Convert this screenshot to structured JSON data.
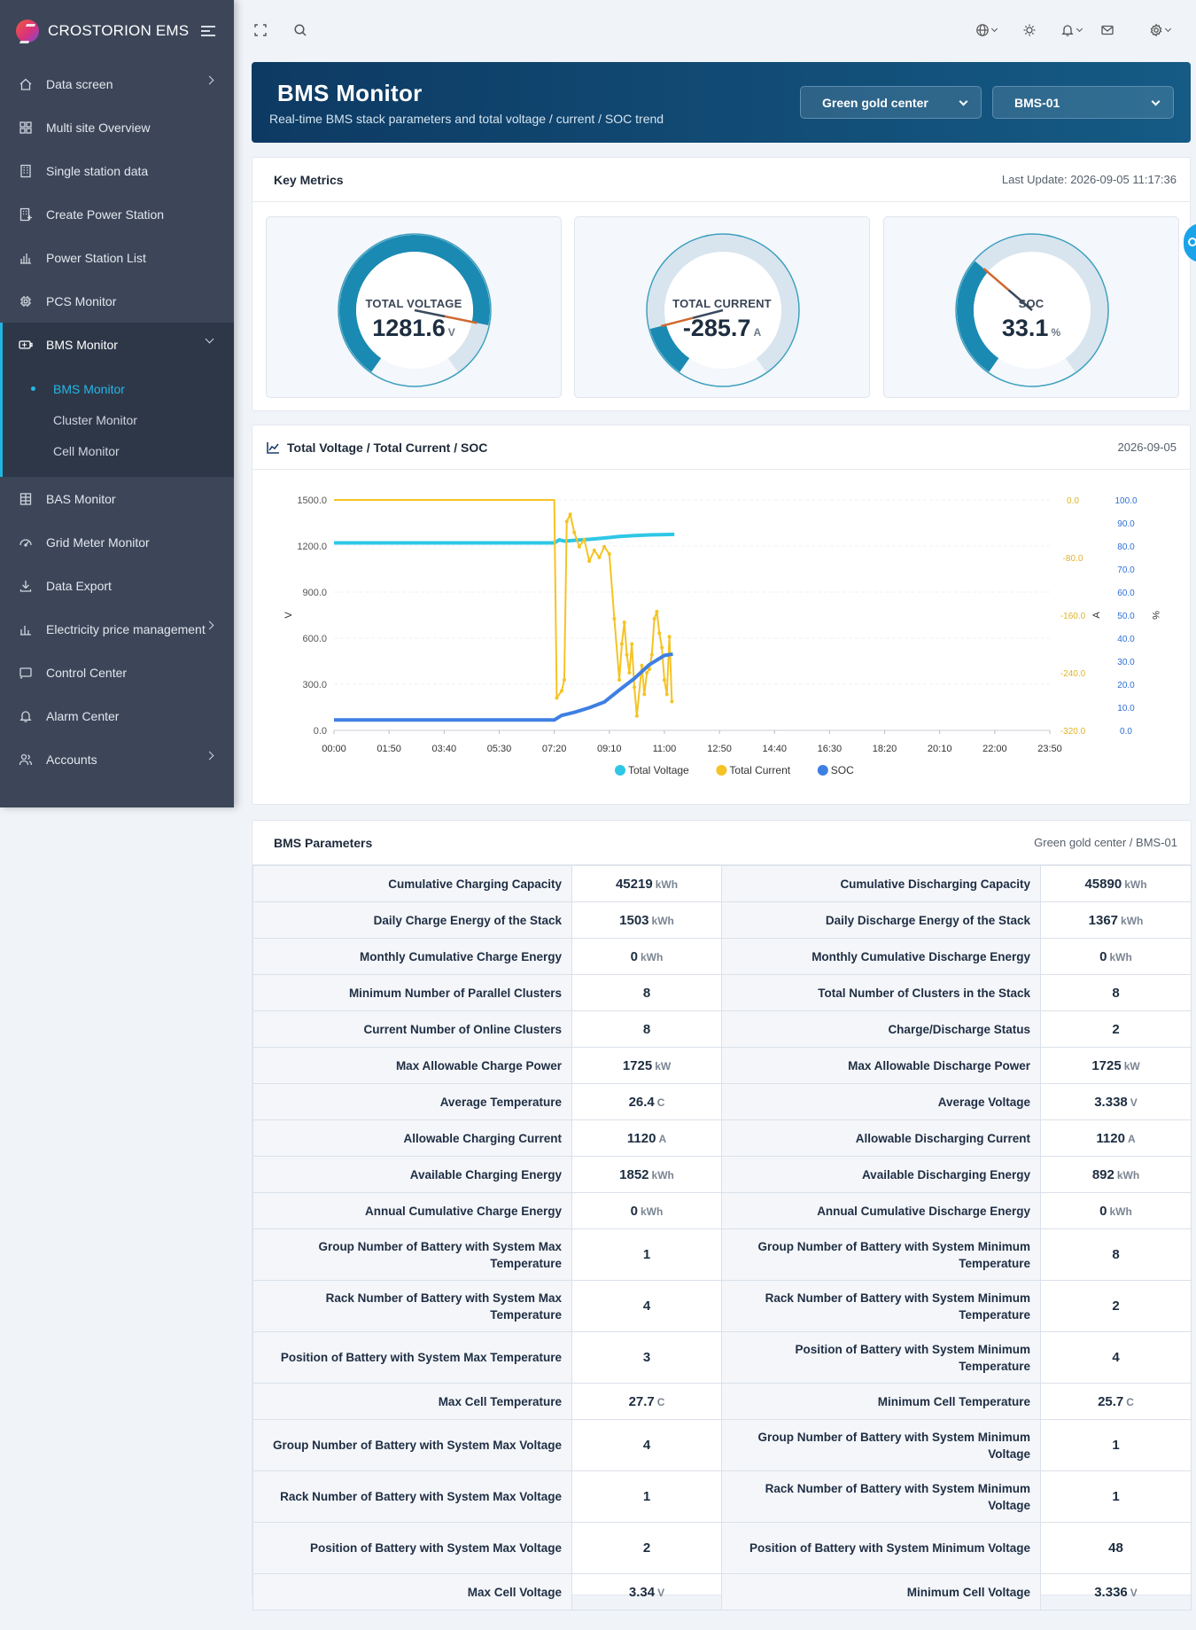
{
  "app": {
    "name": "CROSTORION EMS"
  },
  "sidebar": {
    "items_before": [
      {
        "label": "Data screen",
        "icon": "home-icon",
        "chevron": true
      },
      {
        "label": "Multi site Overview",
        "icon": "grid-icon",
        "chevron": false
      },
      {
        "label": "Single station data",
        "icon": "building-icon",
        "chevron": false
      },
      {
        "label": "Create Power Station",
        "icon": "building-plus-icon",
        "chevron": false
      },
      {
        "label": "Power Station List",
        "icon": "bar-list-icon",
        "chevron": false
      },
      {
        "label": "PCS Monitor",
        "icon": "chip-icon",
        "chevron": false
      }
    ],
    "active": {
      "label": "BMS Monitor",
      "icon": "battery-icon"
    },
    "submenu": [
      {
        "label": "BMS Monitor",
        "active": true
      },
      {
        "label": "Cluster Monitor",
        "active": false
      },
      {
        "label": "Cell Monitor",
        "active": false
      }
    ],
    "items_after": [
      {
        "label": "BAS Monitor",
        "icon": "building-grid-icon",
        "chevron": false
      },
      {
        "label": "Grid Meter Monitor",
        "icon": "gauge-icon",
        "chevron": false
      },
      {
        "label": "Data Export",
        "icon": "download-icon",
        "chevron": false
      },
      {
        "label": "Electricity price management",
        "icon": "bar-chart-icon",
        "chevron": true
      },
      {
        "label": "Control Center",
        "icon": "cast-icon",
        "chevron": false
      },
      {
        "label": "Alarm Center",
        "icon": "bell-icon",
        "chevron": false
      },
      {
        "label": "Accounts",
        "icon": "users-icon",
        "chevron": true
      }
    ]
  },
  "topbar": {
    "icons": [
      "fullscreen-icon",
      "search-icon",
      "globe-icon",
      "sun-icon",
      "bell-icon",
      "mail-icon",
      "settings-icon"
    ]
  },
  "banner": {
    "title": "BMS Monitor",
    "subtitle": "Real-time BMS stack parameters and total voltage / current / SOC trend",
    "station_select": "Green gold center",
    "bms_select": "BMS-01"
  },
  "key_metrics": {
    "title": "Key Metrics",
    "last_update": "Last Update: 2026-09-05 11:17:36",
    "gauges": [
      {
        "label": "TOTAL VOLTAGE",
        "value": "1281.6",
        "unit": "V",
        "fraction": 0.85
      },
      {
        "label": "TOTAL CURRENT",
        "value": "-285.7",
        "unit": "A",
        "fraction": 0.14
      },
      {
        "label": "SOC",
        "value": "33.1",
        "unit": "%",
        "fraction": 0.33
      }
    ]
  },
  "trend": {
    "title": "Total Voltage / Total Current / SOC",
    "date": "2026-09-05"
  },
  "chart_data": {
    "type": "line",
    "title": "Total Voltage / Total Current / SOC",
    "x_labels": [
      "00:00",
      "01:50",
      "03:40",
      "05:30",
      "07:20",
      "09:10",
      "11:00",
      "12:50",
      "14:40",
      "16:30",
      "18:20",
      "20:10",
      "22:00",
      "23:50"
    ],
    "axes": {
      "left": {
        "label": "V",
        "ticks": [
          "0.0",
          "300.0",
          "600.0",
          "900.0",
          "1200.0",
          "1500.0"
        ],
        "range": [
          0,
          1500
        ]
      },
      "right1": {
        "label": "A",
        "ticks": [
          "-320.0",
          "-240.0",
          "-160.0",
          "-80.0",
          "0.0"
        ],
        "range": [
          -320,
          0
        ]
      },
      "right2": {
        "label": "%",
        "ticks": [
          "0.0",
          "10.0",
          "20.0",
          "30.0",
          "40.0",
          "50.0",
          "60.0",
          "70.0",
          "80.0",
          "90.0",
          "100.0"
        ],
        "range": [
          0,
          100
        ]
      }
    },
    "grid": true,
    "legend": "bottom",
    "series": [
      {
        "name": "Total Voltage",
        "axis": "left",
        "color": "#2ec7e6",
        "points": [
          [
            "00:00",
            1220
          ],
          [
            "07:20",
            1220
          ],
          [
            "07:30",
            1240
          ],
          [
            "07:40",
            1232
          ],
          [
            "08:00",
            1237
          ],
          [
            "08:30",
            1243
          ],
          [
            "09:00",
            1252
          ],
          [
            "09:30",
            1262
          ],
          [
            "10:00",
            1268
          ],
          [
            "10:30",
            1272
          ],
          [
            "11:20",
            1276
          ]
        ]
      },
      {
        "name": "Total Current",
        "axis": "right1",
        "color": "#f5c324",
        "points": [
          [
            "00:00",
            0
          ],
          [
            "07:20",
            0
          ],
          [
            "07:25",
            -275
          ],
          [
            "07:35",
            -265
          ],
          [
            "07:40",
            -250
          ],
          [
            "07:45",
            -30
          ],
          [
            "07:52",
            -20
          ],
          [
            "08:00",
            -45
          ],
          [
            "08:10",
            -65
          ],
          [
            "08:20",
            -55
          ],
          [
            "08:30",
            -85
          ],
          [
            "08:40",
            -70
          ],
          [
            "08:50",
            -80
          ],
          [
            "09:00",
            -65
          ],
          [
            "09:10",
            -75
          ],
          [
            "09:20",
            -165
          ],
          [
            "09:30",
            -250
          ],
          [
            "09:35",
            -200
          ],
          [
            "09:40",
            -170
          ],
          [
            "09:45",
            -215
          ],
          [
            "09:50",
            -240
          ],
          [
            "09:55",
            -200
          ],
          [
            "10:00",
            -260
          ],
          [
            "10:05",
            -300
          ],
          [
            "10:15",
            -230
          ],
          [
            "10:20",
            -270
          ],
          [
            "10:25",
            -240
          ],
          [
            "10:30",
            -235
          ],
          [
            "10:35",
            -215
          ],
          [
            "10:40",
            -165
          ],
          [
            "10:45",
            -155
          ],
          [
            "10:50",
            -185
          ],
          [
            "10:55",
            -205
          ],
          [
            "11:00",
            -250
          ],
          [
            "11:05",
            -270
          ],
          [
            "11:10",
            -190
          ],
          [
            "11:15",
            -280
          ]
        ]
      },
      {
        "name": "SOC",
        "axis": "right2",
        "color": "#3e7fe3",
        "points": [
          [
            "00:00",
            4.5
          ],
          [
            "07:20",
            4.5
          ],
          [
            "07:35",
            6.5
          ],
          [
            "08:00",
            7.8
          ],
          [
            "08:30",
            9.8
          ],
          [
            "09:00",
            12.3
          ],
          [
            "09:30",
            17.5
          ],
          [
            "10:00",
            22.5
          ],
          [
            "10:30",
            28.5
          ],
          [
            "11:00",
            32.5
          ],
          [
            "11:17",
            33.1
          ]
        ]
      }
    ]
  },
  "params": {
    "title": "BMS Parameters",
    "subtitle": "Green gold center / BMS-01",
    "rows": [
      [
        {
          "label": "Cumulative Charging Capacity",
          "value": "45219",
          "unit": "kWh"
        },
        {
          "label": "Cumulative Discharging Capacity",
          "value": "45890",
          "unit": "kWh"
        }
      ],
      [
        {
          "label": "Daily Charge Energy of the Stack",
          "value": "1503",
          "unit": "kWh"
        },
        {
          "label": "Daily Discharge Energy of the Stack",
          "value": "1367",
          "unit": "kWh"
        }
      ],
      [
        {
          "label": "Monthly Cumulative Charge Energy",
          "value": "0",
          "unit": "kWh"
        },
        {
          "label": "Monthly Cumulative Discharge Energy",
          "value": "0",
          "unit": "kWh"
        }
      ],
      [
        {
          "label": "Minimum Number of Parallel Clusters",
          "value": "8",
          "unit": ""
        },
        {
          "label": "Total Number of Clusters in the Stack",
          "value": "8",
          "unit": ""
        }
      ],
      [
        {
          "label": "Current Number of Online Clusters",
          "value": "8",
          "unit": ""
        },
        {
          "label": "Charge/Discharge Status",
          "value": "2",
          "unit": ""
        }
      ],
      [
        {
          "label": "Max Allowable Charge Power",
          "value": "1725",
          "unit": "kW"
        },
        {
          "label": "Max Allowable Discharge Power",
          "value": "1725",
          "unit": "kW"
        }
      ],
      [
        {
          "label": "Average Temperature",
          "value": "26.4",
          "unit": "C"
        },
        {
          "label": "Average Voltage",
          "value": "3.338",
          "unit": "V"
        }
      ],
      [
        {
          "label": "Allowable Charging Current",
          "value": "1120",
          "unit": "A"
        },
        {
          "label": "Allowable Discharging Current",
          "value": "1120",
          "unit": "A"
        }
      ],
      [
        {
          "label": "Available Charging Energy",
          "value": "1852",
          "unit": "kWh"
        },
        {
          "label": "Available Discharging Energy",
          "value": "892",
          "unit": "kWh"
        }
      ],
      [
        {
          "label": "Annual Cumulative Charge Energy",
          "value": "0",
          "unit": "kWh"
        },
        {
          "label": "Annual Cumulative Discharge Energy",
          "value": "0",
          "unit": "kWh"
        }
      ],
      [
        {
          "label": "Group Number of Battery with System Max Temperature",
          "value": "1",
          "unit": ""
        },
        {
          "label": "Group Number of Battery with System Minimum Temperature",
          "value": "8",
          "unit": ""
        }
      ],
      [
        {
          "label": "Rack Number of Battery with System Max Temperature",
          "value": "4",
          "unit": ""
        },
        {
          "label": "Rack Number of Battery with System Minimum Temperature",
          "value": "2",
          "unit": ""
        }
      ],
      [
        {
          "label": "Position of Battery with System Max Temperature",
          "value": "3",
          "unit": ""
        },
        {
          "label": "Position of Battery with System Minimum Temperature",
          "value": "4",
          "unit": ""
        }
      ],
      [
        {
          "label": "Max Cell Temperature",
          "value": "27.7",
          "unit": "C"
        },
        {
          "label": "Minimum Cell Temperature",
          "value": "25.7",
          "unit": "C"
        }
      ],
      [
        {
          "label": "Group Number of Battery with System Max Voltage",
          "value": "4",
          "unit": ""
        },
        {
          "label": "Group Number of Battery with System Minimum Voltage",
          "value": "1",
          "unit": ""
        }
      ],
      [
        {
          "label": "Rack Number of Battery with System Max Voltage",
          "value": "1",
          "unit": ""
        },
        {
          "label": "Rack Number of Battery with System Minimum Voltage",
          "value": "1",
          "unit": ""
        }
      ],
      [
        {
          "label": "Position of Battery with System Max Voltage",
          "value": "2",
          "unit": ""
        },
        {
          "label": "Position of Battery with System Minimum Voltage",
          "value": "48",
          "unit": ""
        }
      ],
      [
        {
          "label": "Max Cell Voltage",
          "value": "3.34",
          "unit": "V"
        },
        {
          "label": "Minimum Cell Voltage",
          "value": "3.336",
          "unit": "V"
        }
      ]
    ]
  }
}
